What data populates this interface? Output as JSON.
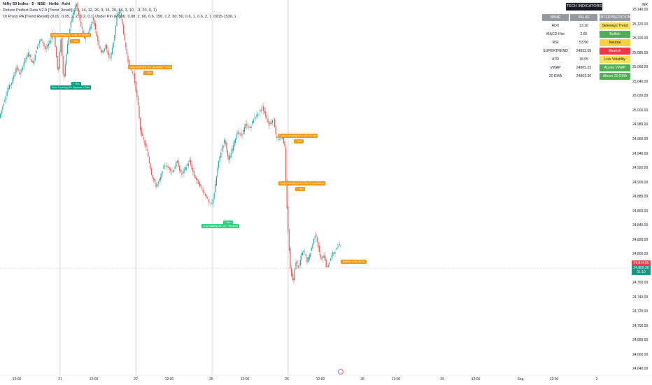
{
  "header": {
    "title": "Nifty 50 Index · 5 · NSE · Heikin Ashi",
    "indicator1": "Picture Perfect Data V2.0 [Trend Revolt] (14, 14, 12, 26, 9, 14, 20, 14, 3, 10, 13, 20, 0, 1)",
    "indicator2": "OI Proxy PA [Trend Revolt] (0.09, 0.05, 2, 2, 0.2, 0.1, Under Pin (Right), 0.08, 2, 60, 0.6, 150, 1.2, 50, 50, 0.6, 1, 0.6, 2, 1, 0915-1530, )",
    "currency": "INR"
  },
  "table": {
    "title": "TECH INDICATORS",
    "headers": [
      "NAME",
      "VALUE",
      "INTERPRETATION"
    ],
    "rows": [
      {
        "name": "ADX",
        "value": "13.20",
        "interp": "Sideways Trend",
        "color": "#f7e25a"
      },
      {
        "name": "MACD Hist",
        "value": "2.65",
        "interp": "Bullish",
        "color": "#4caf50"
      },
      {
        "name": "RSI",
        "value": "53.90",
        "interp": "Neutral",
        "color": "#f7d23a"
      },
      {
        "name": "SUPERTREND",
        "value": "24833.05",
        "interp": "Bearish",
        "color": "#f23645"
      },
      {
        "name": "ATR",
        "value": "16.05",
        "interp": "Low Volatility",
        "color": "#f7e25a"
      },
      {
        "name": "VWAP",
        "value": "24805.25",
        "interp": "Above VWAP",
        "color": "#4caf50"
      },
      {
        "name": "20 EMA",
        "value": "24803.30",
        "interp": "Above 20 EMA",
        "color": "#4caf50"
      }
    ]
  },
  "price_tags": {
    "red": "24,814.05",
    "green": "24,809.30",
    "time": "01:10"
  },
  "chart_data": {
    "type": "candlestick",
    "ylim": [
      24620,
      25150
    ],
    "yticks": [
      24640,
      24660,
      24680,
      24700,
      24720,
      24740,
      24760,
      24780,
      24800,
      24820,
      24840,
      24860,
      24880,
      24900,
      24920,
      24940,
      24960,
      24980,
      25000,
      25020,
      25040,
      25060,
      25080,
      25100,
      25120,
      25140
    ],
    "ytick_labels": [
      "24,640.00",
      "24,660.00",
      "24,680.00",
      "24,700.00",
      "24,720.00",
      "24,740.00",
      "24,760.00",
      "24,780.00",
      "24,800.00",
      "24,820.00",
      "24,840.00",
      "24,860.00",
      "24,880.00",
      "24,900.00",
      "24,920.00",
      "24,940.00",
      "24,960.00",
      "24,980.00",
      "25,000.00",
      "25,020.00",
      "25,040.00",
      "25,060.00",
      "25,080.00",
      "25,100.00",
      "25,120.00",
      "25,140.00"
    ],
    "xticks": [
      "12:00",
      "21",
      "12:00",
      "22",
      "12:00",
      "25",
      "12:00",
      "26",
      "12:00",
      "28",
      "12:00",
      "29",
      "12:00",
      "Sep",
      "12:00",
      "2"
    ],
    "up_color": "#26a69a",
    "down_color": "#ef5350",
    "price_path": [
      [
        0,
        24990
      ],
      [
        6,
        25010
      ],
      [
        12,
        25030
      ],
      [
        18,
        25040
      ],
      [
        24,
        25060
      ],
      [
        30,
        25050
      ],
      [
        36,
        25070
      ],
      [
        42,
        25080
      ],
      [
        48,
        25065
      ],
      [
        54,
        25090
      ],
      [
        60,
        25100
      ],
      [
        66,
        25085
      ],
      [
        72,
        25095
      ],
      [
        78,
        25110
      ],
      [
        84,
        25050
      ],
      [
        88,
        25100
      ],
      [
        92,
        25040
      ],
      [
        96,
        25080
      ],
      [
        100,
        25110
      ],
      [
        104,
        25130
      ],
      [
        110,
        25150
      ],
      [
        116,
        25120
      ],
      [
        122,
        25100
      ],
      [
        128,
        25110
      ],
      [
        134,
        25130
      ],
      [
        140,
        25100
      ],
      [
        146,
        25080
      ],
      [
        152,
        25090
      ],
      [
        158,
        25070
      ],
      [
        164,
        25100
      ],
      [
        168,
        25130
      ],
      [
        172,
        25140
      ],
      [
        176,
        25120
      ],
      [
        180,
        25090
      ],
      [
        186,
        25060
      ],
      [
        192,
        25050
      ],
      [
        198,
        25010
      ],
      [
        202,
        24970
      ],
      [
        206,
        24960
      ],
      [
        212,
        24940
      ],
      [
        218,
        24910
      ],
      [
        224,
        24895
      ],
      [
        230,
        24905
      ],
      [
        236,
        24925
      ],
      [
        242,
        24920
      ],
      [
        248,
        24915
      ],
      [
        254,
        24930
      ],
      [
        260,
        24910
      ],
      [
        266,
        24920
      ],
      [
        272,
        24930
      ],
      [
        278,
        24910
      ],
      [
        284,
        24900
      ],
      [
        290,
        24890
      ],
      [
        296,
        24880
      ],
      [
        300,
        24870
      ],
      [
        304,
        24870
      ],
      [
        308,
        24890
      ],
      [
        312,
        24920
      ],
      [
        316,
        24940
      ],
      [
        322,
        24960
      ],
      [
        328,
        24930
      ],
      [
        334,
        24950
      ],
      [
        340,
        24970
      ],
      [
        346,
        24965
      ],
      [
        352,
        24980
      ],
      [
        358,
        24975
      ],
      [
        364,
        24990
      ],
      [
        370,
        24995
      ],
      [
        376,
        25005
      ],
      [
        380,
        24995
      ],
      [
        386,
        24980
      ],
      [
        392,
        24990
      ],
      [
        396,
        24960
      ],
      [
        400,
        24960
      ],
      [
        404,
        24965
      ],
      [
        408,
        24950
      ],
      [
        410,
        24890
      ],
      [
        413,
        24830
      ],
      [
        416,
        24780
      ],
      [
        420,
        24760
      ],
      [
        424,
        24790
      ],
      [
        428,
        24780
      ],
      [
        432,
        24800
      ],
      [
        436,
        24805
      ],
      [
        440,
        24790
      ],
      [
        444,
        24800
      ],
      [
        448,
        24815
      ],
      [
        452,
        24830
      ],
      [
        456,
        24810
      ],
      [
        460,
        24790
      ],
      [
        464,
        24800
      ],
      [
        468,
        24780
      ],
      [
        472,
        24790
      ],
      [
        476,
        24800
      ],
      [
        480,
        24805
      ],
      [
        486,
        24814
      ]
    ]
  },
  "annotations": [
    {
      "text": "Long Building Vol: 1.06x OI: Buildup",
      "style": "or",
      "x": 72,
      "y": 47
    },
    {
      "text": "+ 45m",
      "style": "or",
      "x": 100,
      "y": 56
    },
    {
      "text": "Short Covering Vol: Squeeze + Rise",
      "style": "gr",
      "x": 72,
      "y": 122
    },
    {
      "text": "+ 45m",
      "style": "gr",
      "x": 102,
      "y": 117
    },
    {
      "text": "Long Unwinding Vol: Liquidation + Drop",
      "style": "or",
      "x": 183,
      "y": 93
    },
    {
      "text": "+ 30m",
      "style": "or",
      "x": 205,
      "y": 101
    },
    {
      "text": "Long Unwinding Vol: 1.05x OI: Sell",
      "style": "or",
      "x": 398,
      "y": 191
    },
    {
      "text": "+ 30m",
      "style": "or",
      "x": 420,
      "y": 199
    },
    {
      "text": "Long Unwinding Vol: 1.05x OI: Liquidation",
      "style": "or",
      "x": 398,
      "y": 259
    },
    {
      "text": "+ 15m",
      "style": "or",
      "x": 422,
      "y": 267
    },
    {
      "text": "Long Building Vol: Vol + Breakout",
      "style": "lg",
      "x": 288,
      "y": 320
    },
    {
      "text": "+ 45m",
      "style": "lg",
      "x": 319,
      "y": 315
    }
  ],
  "current_price_annotation": "Bearish 0.0% (61%)"
}
